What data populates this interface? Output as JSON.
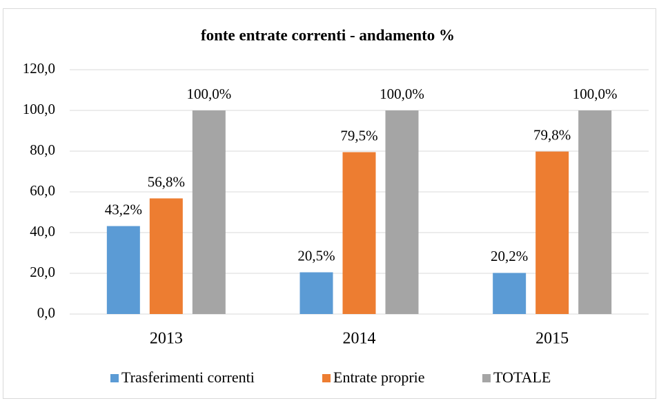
{
  "chart_data": {
    "type": "bar",
    "title": "fonte entrate correnti - andamento %",
    "categories": [
      "2013",
      "2014",
      "2015"
    ],
    "series": [
      {
        "name": "Trasferimenti correnti",
        "color": "#5b9bd5",
        "values": [
          43.2,
          20.5,
          20.2
        ],
        "value_labels": [
          "43,2%",
          "20,5%",
          "20,2%"
        ]
      },
      {
        "name": "Entrate proprie",
        "color": "#ed7d31",
        "values": [
          56.8,
          79.5,
          79.8
        ],
        "value_labels": [
          "56,8%",
          "79,5%",
          "79,8%"
        ]
      },
      {
        "name": "TOTALE",
        "color": "#a5a5a5",
        "values": [
          100,
          100,
          100
        ],
        "value_labels": [
          "100,0%",
          "100,0%",
          "100,0%"
        ]
      }
    ],
    "ylim": [
      0,
      120
    ],
    "yticks": [
      {
        "value": 0,
        "label": "0,0"
      },
      {
        "value": 20,
        "label": "20,0"
      },
      {
        "value": 40,
        "label": "40,0"
      },
      {
        "value": 60,
        "label": "60,0"
      },
      {
        "value": 80,
        "label": "80,0"
      },
      {
        "value": 100,
        "label": "100,0"
      },
      {
        "value": 120,
        "label": "120,0"
      }
    ],
    "grid": true,
    "legend": "bottom"
  }
}
